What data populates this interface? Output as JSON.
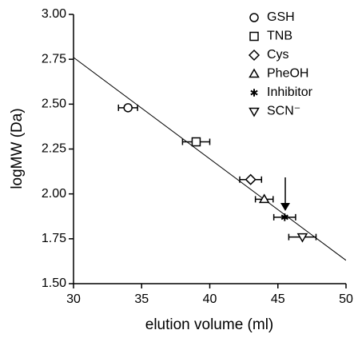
{
  "chart_data": {
    "type": "scatter",
    "x_label": "elution volume (ml)",
    "y_label": "logMW (Da)",
    "xlim": [
      30,
      50
    ],
    "xticks": [
      30,
      35,
      40,
      45,
      50
    ],
    "ylim": [
      1.5,
      3.0
    ],
    "yticks": [
      {
        "value": 1.5,
        "label": "1.50"
      },
      {
        "value": 1.75,
        "label": "1.75"
      },
      {
        "value": 2.0,
        "label": "2.00"
      },
      {
        "value": 2.25,
        "label": "2.25"
      },
      {
        "value": 2.5,
        "label": "2.50"
      },
      {
        "value": 2.75,
        "label": "2.75"
      },
      {
        "value": 3.0,
        "label": "3.00"
      }
    ],
    "color": "#000000",
    "series": [
      {
        "name": "GSH",
        "marker": "circle",
        "x": [
          34.0
        ],
        "y": [
          2.48
        ],
        "xerr": [
          0.7
        ]
      },
      {
        "name": "TNB",
        "marker": "square",
        "x": [
          39.0
        ],
        "y": [
          2.29
        ],
        "xerr": [
          1.0
        ]
      },
      {
        "name": "Cys",
        "marker": "diamond",
        "x": [
          43.0
        ],
        "y": [
          2.08
        ],
        "xerr": [
          0.8
        ]
      },
      {
        "name": "PheOH",
        "marker": "triangle-up",
        "x": [
          44.0
        ],
        "y": [
          1.97
        ],
        "xerr": [
          0.65
        ]
      },
      {
        "name": "Inhibitor",
        "marker": "asterisk",
        "x": [
          45.5
        ],
        "y": [
          1.87
        ],
        "xerr": [
          0.8
        ]
      },
      {
        "name": "SCN⁻",
        "marker": "triangle-down",
        "x": [
          46.8
        ],
        "y": [
          1.76
        ],
        "xerr": [
          1.0
        ]
      }
    ],
    "fit_line": {
      "x": [
        30,
        50
      ],
      "y": [
        2.76,
        1.63
      ]
    }
  }
}
